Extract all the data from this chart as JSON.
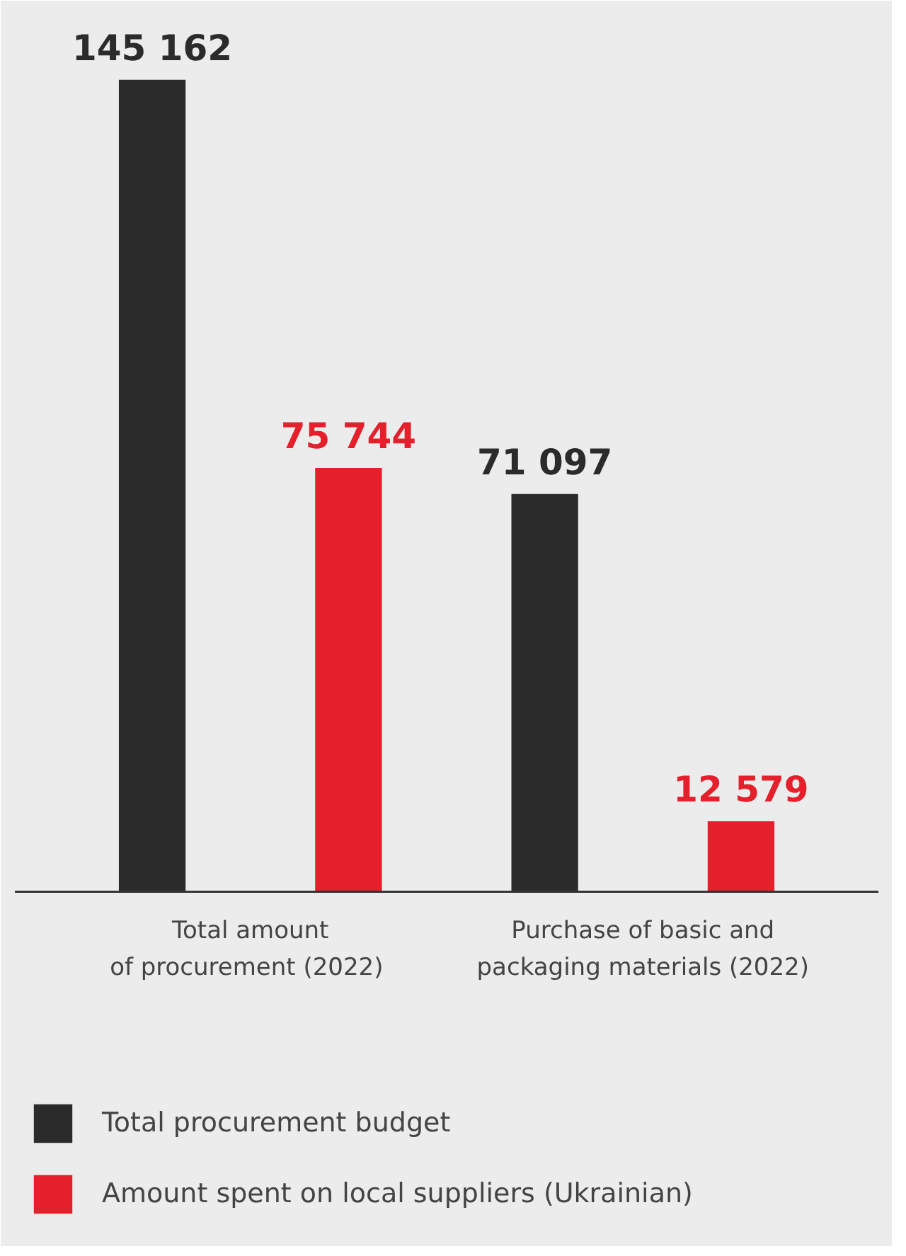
{
  "chart_data": {
    "type": "bar",
    "categories": [
      "Total amount\nof procurement  (2022)",
      "Purchase of basic and\npackaging materials (2022)"
    ],
    "series": [
      {
        "name": "Total procurement budget",
        "color": "#2b2b2b",
        "values": [
          145162,
          71097
        ],
        "value_labels": [
          "145 162",
          "71 097"
        ]
      },
      {
        "name": "Amount spent on local suppliers (Ukrainian)",
        "color": "#e3202b",
        "values": [
          75744,
          12579
        ],
        "value_labels": [
          "75 744",
          "12 579"
        ]
      }
    ],
    "legend": "bottom"
  }
}
